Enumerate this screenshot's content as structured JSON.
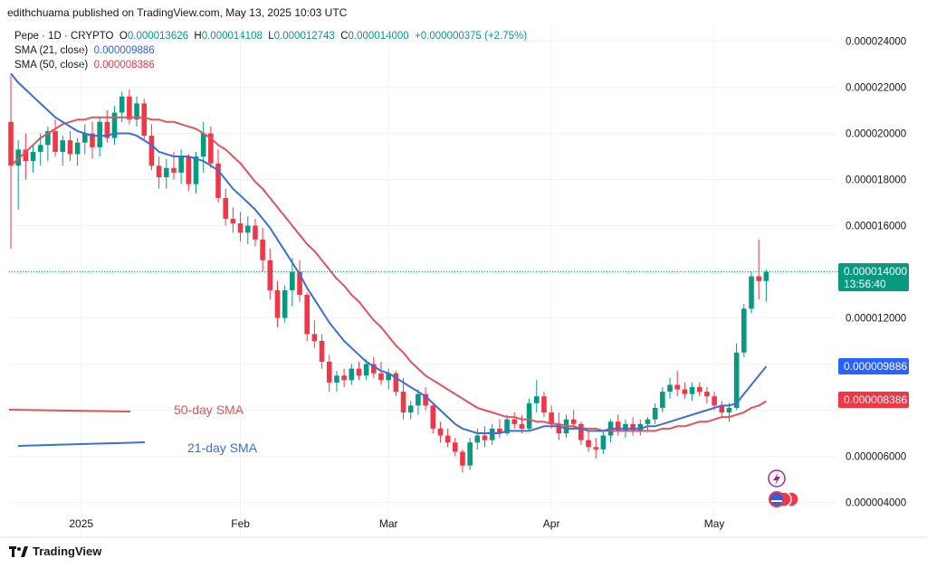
{
  "header": {
    "publisher_line": "edithchuama published on TradingView.com, May 13, 2025 10:03 UTC"
  },
  "legend": {
    "symbol": "Pepe · 1D · CRYPTO",
    "open_label": "O",
    "open": "0.000013626",
    "high_label": "H",
    "high": "0.000014108",
    "low_label": "L",
    "low": "0.000012743",
    "close_label": "C",
    "close": "0.000014000",
    "change": "+0.000000375 (+2.75%)",
    "sma21_label": "SMA (21, close)",
    "sma21_value": "0.000009886",
    "sma50_label": "SMA (50, close)",
    "sma50_value": "0.000008386"
  },
  "annotations": {
    "sma50_text": "50-day SMA",
    "sma21_text": "21-day SMA"
  },
  "price_tags": {
    "last_price": "0.000014000",
    "countdown": "13:56:40",
    "sma21": "0.000009886",
    "sma50": "0.000008386"
  },
  "footer": {
    "brand": "TradingView"
  },
  "colors": {
    "up": "#089981",
    "down": "#f23645",
    "sma21": "#2962ff",
    "sma50": "#e0545a",
    "grid": "#f0f3fa"
  },
  "chart_data": {
    "type": "candlestick",
    "y_ticks": [
      "0.000024000",
      "0.000022000",
      "0.000020000",
      "0.000018000",
      "0.000016000",
      "0.000012000",
      "0.000006000",
      "0.000004000"
    ],
    "x_ticks": [
      "2025",
      "Feb",
      "Mar",
      "Apr",
      "May"
    ],
    "ylim": [
      3e-06,
      2.48e-05
    ],
    "candles": [
      [
        2.05e-05,
        2.25e-05,
        1.5e-05,
        1.86e-05
      ],
      [
        1.86e-05,
        1.97e-05,
        1.67e-05,
        1.93e-05
      ],
      [
        1.93e-05,
        2e-05,
        1.8e-05,
        1.88e-05
      ],
      [
        1.88e-05,
        1.95e-05,
        1.83e-05,
        1.92e-05
      ],
      [
        1.92e-05,
        2e-05,
        1.86e-05,
        1.95e-05
      ],
      [
        1.95e-05,
        2.03e-05,
        1.88e-05,
        2.01e-05
      ],
      [
        2.01e-05,
        2.06e-05,
        1.9e-05,
        1.92e-05
      ],
      [
        1.92e-05,
        1.99e-05,
        1.86e-05,
        1.97e-05
      ],
      [
        1.97e-05,
        2.01e-05,
        1.88e-05,
        1.91e-05
      ],
      [
        1.91e-05,
        1.98e-05,
        1.86e-05,
        1.96e-05
      ],
      [
        1.96e-05,
        2.04e-05,
        1.91e-05,
        2e-05
      ],
      [
        2e-05,
        2.05e-05,
        1.89e-05,
        1.94e-05
      ],
      [
        1.94e-05,
        2.07e-05,
        1.9e-05,
        2.05e-05
      ],
      [
        2.05e-05,
        2.1e-05,
        1.96e-05,
        1.98e-05
      ],
      [
        1.98e-05,
        2.12e-05,
        1.95e-05,
        2.09e-05
      ],
      [
        2.09e-05,
        2.18e-05,
        2.05e-05,
        2.16e-05
      ],
      [
        2.16e-05,
        2.19e-05,
        2.04e-05,
        2.06e-05
      ],
      [
        2.06e-05,
        2.16e-05,
        2.03e-05,
        2.13e-05
      ],
      [
        2.13e-05,
        2.15e-05,
        1.97e-05,
        1.99e-05
      ],
      [
        1.99e-05,
        2.04e-05,
        1.84e-05,
        1.86e-05
      ],
      [
        1.86e-05,
        1.9e-05,
        1.76e-05,
        1.81e-05
      ],
      [
        1.81e-05,
        1.89e-05,
        1.76e-05,
        1.85e-05
      ],
      [
        1.85e-05,
        1.92e-05,
        1.8e-05,
        1.83e-05
      ],
      [
        1.83e-05,
        1.93e-05,
        1.78e-05,
        1.9e-05
      ],
      [
        1.9e-05,
        1.91e-05,
        1.75e-05,
        1.78e-05
      ],
      [
        1.78e-05,
        1.92e-05,
        1.74e-05,
        1.9e-05
      ],
      [
        1.9e-05,
        2.05e-05,
        1.83e-05,
        2e-05
      ],
      [
        2e-05,
        2.03e-05,
        1.85e-05,
        1.87e-05
      ],
      [
        1.87e-05,
        1.93e-05,
        1.7e-05,
        1.72e-05
      ],
      [
        1.72e-05,
        1.76e-05,
        1.6e-05,
        1.63e-05
      ],
      [
        1.63e-05,
        1.68e-05,
        1.57e-05,
        1.61e-05
      ],
      [
        1.61e-05,
        1.66e-05,
        1.53e-05,
        1.57e-05
      ],
      [
        1.57e-05,
        1.64e-05,
        1.52e-05,
        1.6e-05
      ],
      [
        1.6e-05,
        1.63e-05,
        1.51e-05,
        1.54e-05
      ],
      [
        1.54e-05,
        1.59e-05,
        1.4e-05,
        1.45e-05
      ],
      [
        1.45e-05,
        1.5e-05,
        1.28e-05,
        1.32e-05
      ],
      [
        1.32e-05,
        1.36e-05,
        1.16e-05,
        1.2e-05
      ],
      [
        1.2e-05,
        1.34e-05,
        1.18e-05,
        1.32e-05
      ],
      [
        1.32e-05,
        1.46e-05,
        1.25e-05,
        1.4e-05
      ],
      [
        1.4e-05,
        1.45e-05,
        1.27e-05,
        1.3e-05
      ],
      [
        1.3e-05,
        1.31e-05,
        1.1e-05,
        1.13e-05
      ],
      [
        1.13e-05,
        1.19e-05,
        1.07e-05,
        1.1e-05
      ],
      [
        1.1e-05,
        1.13e-05,
        9.8e-06,
        1.01e-05
      ],
      [
        1.01e-05,
        1.04e-05,
        8.8e-06,
        9.2e-06
      ],
      [
        9.2e-06,
        9.7e-06,
        8.8e-06,
        9.5e-06
      ],
      [
        9.5e-06,
        9.8e-06,
        9e-06,
        9.3e-06
      ],
      [
        9.3e-06,
        1e-05,
        9.1e-06,
        9.8e-06
      ],
      [
        9.8e-06,
        1.01e-05,
        9.3e-06,
        9.5e-06
      ],
      [
        9.5e-06,
        1.02e-05,
        9.3e-06,
        1e-05
      ],
      [
        1e-05,
        1.03e-05,
        9.4e-06,
        9.6e-06
      ],
      [
        9.6e-06,
        1.01e-05,
        9.1e-06,
        9.3e-06
      ],
      [
        9.3e-06,
        9.8e-06,
        8.9e-06,
        9.6e-06
      ],
      [
        9.6e-06,
        9.7e-06,
        8.6e-06,
        8.8e-06
      ],
      [
        8.8e-06,
        9.4e-06,
        7.6e-06,
        7.9e-06
      ],
      [
        7.9e-06,
        8.4e-06,
        7.6e-06,
        8.2e-06
      ],
      [
        8.2e-06,
        8.9e-06,
        7.8e-06,
        8.7e-06
      ],
      [
        8.7e-06,
        9e-06,
        8e-06,
        8.2e-06
      ],
      [
        8.2e-06,
        8.3e-06,
        7e-06,
        7.2e-06
      ],
      [
        7.2e-06,
        7.5e-06,
        6.6e-06,
        6.9e-06
      ],
      [
        6.9e-06,
        7.2e-06,
        6.4e-06,
        6.6e-06
      ],
      [
        6.6e-06,
        6.8e-06,
        6e-06,
        6.2e-06
      ],
      [
        6.2e-06,
        6.3e-06,
        5.3e-06,
        5.6e-06
      ],
      [
        5.6e-06,
        6.8e-06,
        5.4e-06,
        6.6e-06
      ],
      [
        6.6e-06,
        7.2e-06,
        6.3e-06,
        6.9e-06
      ],
      [
        6.9e-06,
        7.3e-06,
        6.4e-06,
        6.7e-06
      ],
      [
        6.7e-06,
        7.4e-06,
        6.5e-06,
        7.2e-06
      ],
      [
        7.2e-06,
        7.6e-06,
        6.8e-06,
        7e-06
      ],
      [
        7e-06,
        7.8e-06,
        6.9e-06,
        7.6e-06
      ],
      [
        7.6e-06,
        7.9e-06,
        7.2e-06,
        7.4e-06
      ],
      [
        7.4e-06,
        7.8e-06,
        7e-06,
        7.2e-06
      ],
      [
        7.2e-06,
        8.5e-06,
        7.1e-06,
        8.3e-06
      ],
      [
        8.3e-06,
        9.3e-06,
        7.9e-06,
        8.6e-06
      ],
      [
        8.6e-06,
        8.8e-06,
        7.7e-06,
        7.9e-06
      ],
      [
        7.9e-06,
        8.2e-06,
        7.2e-06,
        7.4e-06
      ],
      [
        7.4e-06,
        7.9e-06,
        6.7e-06,
        7e-06
      ],
      [
        7e-06,
        7.8e-06,
        6.8e-06,
        7.6e-06
      ],
      [
        7.6e-06,
        8e-06,
        7.2e-06,
        7.4e-06
      ],
      [
        7.4e-06,
        7.5e-06,
        6.5e-06,
        6.7e-06
      ],
      [
        6.7e-06,
        7.1e-06,
        6.2e-06,
        6.4e-06
      ],
      [
        6.4e-06,
        6.8e-06,
        5.9e-06,
        6.3e-06
      ],
      [
        6.3e-06,
        7.1e-06,
        6.1e-06,
        6.9e-06
      ],
      [
        6.9e-06,
        7.6e-06,
        6.6e-06,
        7.5e-06
      ],
      [
        7.5e-06,
        7.8e-06,
        6.9e-06,
        7.1e-06
      ],
      [
        7.1e-06,
        7.6e-06,
        6.8e-06,
        7.4e-06
      ],
      [
        7.4e-06,
        7.7e-06,
        6.9e-06,
        7.1e-06
      ],
      [
        7.1e-06,
        7.6e-06,
        6.9e-06,
        7.4e-06
      ],
      [
        7.4e-06,
        7.7e-06,
        7.1e-06,
        7.6e-06
      ],
      [
        7.6e-06,
        8.3e-06,
        7.4e-06,
        8.1e-06
      ],
      [
        8.1e-06,
        9e-06,
        7.9e-06,
        8.8e-06
      ],
      [
        8.8e-06,
        9.4e-06,
        8.5e-06,
        9.1e-06
      ],
      [
        9.1e-06,
        9.7e-06,
        8.6e-06,
        8.9e-06
      ],
      [
        8.9e-06,
        9.2e-06,
        8.5e-06,
        8.7e-06
      ],
      [
        8.7e-06,
        9.2e-06,
        8.4e-06,
        9e-06
      ],
      [
        9e-06,
        9.2e-06,
        8.6e-06,
        8.8e-06
      ],
      [
        8.8e-06,
        9e-06,
        8.3e-06,
        8.6e-06
      ],
      [
        8.6e-06,
        8.8e-06,
        8e-06,
        8.2e-06
      ],
      [
        8.2e-06,
        8.4e-06,
        7.7e-06,
        7.9e-06
      ],
      [
        7.9e-06,
        8.3e-06,
        7.5e-06,
        8.1e-06
      ],
      [
        8.1e-06,
        1.09e-05,
        8e-06,
        1.05e-05
      ],
      [
        1.05e-05,
        1.26e-05,
        1.03e-05,
        1.24e-05
      ],
      [
        1.24e-05,
        1.4e-05,
        1.22e-05,
        1.38e-05
      ],
      [
        1.38e-05,
        1.54e-05,
        1.28e-05,
        1.36e-05
      ],
      [
        1.36e-05,
        1.41e-05,
        1.27e-05,
        1.4e-05
      ]
    ],
    "sma21": [
      2.26e-05,
      2.22e-05,
      2.19e-05,
      2.16e-05,
      2.13e-05,
      2.1e-05,
      2.07e-05,
      2.05e-05,
      2.03e-05,
      2.01e-05,
      2e-05,
      1.99e-05,
      1.99e-05,
      1.99e-05,
      2e-05,
      2e-05,
      2e-05,
      1.99e-05,
      1.97e-05,
      1.95e-05,
      1.92e-05,
      1.91e-05,
      1.9e-05,
      1.9e-05,
      1.9e-05,
      1.89e-05,
      1.88e-05,
      1.86e-05,
      1.84e-05,
      1.8e-05,
      1.76e-05,
      1.73e-05,
      1.7e-05,
      1.67e-05,
      1.63e-05,
      1.59e-05,
      1.54e-05,
      1.49e-05,
      1.44e-05,
      1.39e-05,
      1.33e-05,
      1.28e-05,
      1.23e-05,
      1.18e-05,
      1.14e-05,
      1.1e-05,
      1.07e-05,
      1.04e-05,
      1.01e-05,
      9.9e-06,
      9.7e-06,
      9.6e-06,
      9.4e-06,
      9.2e-06,
      9e-06,
      8.8e-06,
      8.6e-06,
      8.3e-06,
      8e-06,
      7.7e-06,
      7.4e-06,
      7.2e-06,
      7.1e-06,
      7e-06,
      7e-06,
      7e-06,
      7e-06,
      7.1e-06,
      7.1e-06,
      7.1e-06,
      7.1e-06,
      7.2e-06,
      7.3e-06,
      7.3e-06,
      7.3e-06,
      7.2e-06,
      7.2e-06,
      7.2e-06,
      7.1e-06,
      7.1e-06,
      7.1e-06,
      7.2e-06,
      7.2e-06,
      7.2e-06,
      7.2e-06,
      7.2e-06,
      7.3e-06,
      7.3e-06,
      7.4e-06,
      7.5e-06,
      7.6e-06,
      7.7e-06,
      7.8e-06,
      7.9e-06,
      8e-06,
      8.1e-06,
      8.2e-06,
      8.2e-06,
      8.3e-06,
      8.7e-06,
      9.1e-06,
      9.5e-06,
      9.89e-06
    ],
    "sma50": [
      1.86e-05,
      1.89e-05,
      1.92e-05,
      1.95e-05,
      1.98e-05,
      2e-05,
      2.02e-05,
      2.04e-05,
      2.05e-05,
      2.06e-05,
      2.06e-05,
      2.07e-05,
      2.07e-05,
      2.07e-05,
      2.07e-05,
      2.07e-05,
      2.07e-05,
      2.07e-05,
      2.07e-05,
      2.06e-05,
      2.06e-05,
      2.05e-05,
      2.05e-05,
      2.04e-05,
      2.03e-05,
      2.02e-05,
      2e-05,
      1.98e-05,
      1.95e-05,
      1.93e-05,
      1.9e-05,
      1.87e-05,
      1.83e-05,
      1.79e-05,
      1.76e-05,
      1.72e-05,
      1.68e-05,
      1.64e-05,
      1.6e-05,
      1.56e-05,
      1.52e-05,
      1.49e-05,
      1.45e-05,
      1.41e-05,
      1.37e-05,
      1.34e-05,
      1.3e-05,
      1.27e-05,
      1.23e-05,
      1.19e-05,
      1.16e-05,
      1.12e-05,
      1.08e-05,
      1.05e-05,
      1.01e-05,
      9.8e-06,
      9.5e-06,
      9.3e-06,
      9.1e-06,
      8.9e-06,
      8.7e-06,
      8.5e-06,
      8.3e-06,
      8.1e-06,
      8e-06,
      7.9e-06,
      7.8e-06,
      7.7e-06,
      7.7e-06,
      7.6e-06,
      7.6e-06,
      7.5e-06,
      7.5e-06,
      7.4e-06,
      7.4e-06,
      7.3e-06,
      7.3e-06,
      7.2e-06,
      7.2e-06,
      7.2e-06,
      7.1e-06,
      7.1e-06,
      7.1e-06,
      7.1e-06,
      7.1e-06,
      7.1e-06,
      7.1e-06,
      7.1e-06,
      7.2e-06,
      7.2e-06,
      7.3e-06,
      7.3e-06,
      7.4e-06,
      7.5e-06,
      7.5e-06,
      7.6e-06,
      7.7e-06,
      7.7e-06,
      7.8e-06,
      7.9e-06,
      8.1e-06,
      8.2e-06,
      8.39e-06
    ]
  }
}
